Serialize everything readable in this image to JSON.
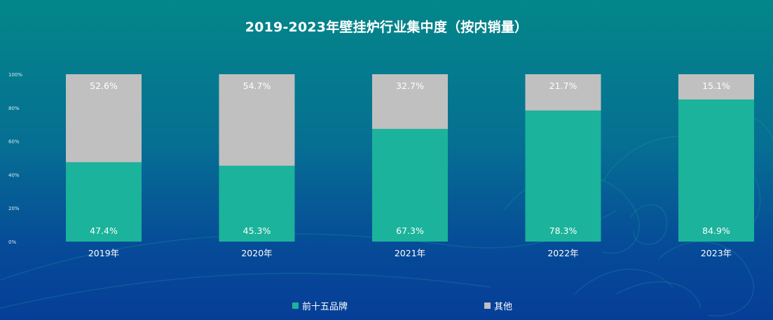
{
  "chart_data": {
    "type": "bar",
    "stacked": true,
    "title": "2019-2023年壁挂炉行业集中度（按内销量）",
    "categories": [
      "2019年",
      "2020年",
      "2021年",
      "2022年",
      "2023年"
    ],
    "series": [
      {
        "name": "前十五品牌",
        "color": "#1bb39b",
        "values": [
          47.4,
          45.3,
          67.3,
          78.3,
          84.9
        ],
        "labels": [
          "47.4%",
          "45.3%",
          "67.3%",
          "78.3%",
          "84.9%"
        ]
      },
      {
        "name": "其他",
        "color": "#c0c0c0",
        "values": [
          52.6,
          54.7,
          32.7,
          21.7,
          15.1
        ],
        "labels": [
          "52.6%",
          "54.7%",
          "32.7%",
          "21.7%",
          "15.1%"
        ]
      }
    ],
    "yticks": [
      "0%",
      "20%",
      "40%",
      "60%",
      "80%",
      "100%"
    ],
    "ylim": [
      0,
      100
    ],
    "grid": false,
    "legend_position": "bottom"
  }
}
